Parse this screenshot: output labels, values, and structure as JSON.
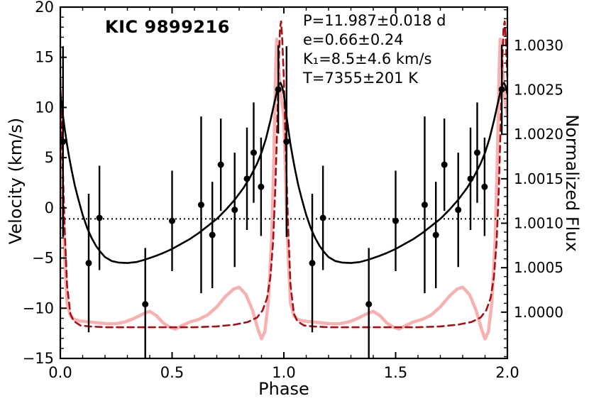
{
  "chart_data": {
    "type": "line",
    "title": "KIC 9899216",
    "xlabel": "Phase",
    "ylabel_left": "Velocity (km/s)",
    "ylabel_right": "Normalized Flux",
    "annotations": [
      "P=11.987±0.018 d",
      "e=0.66±0.24",
      "K₁=8.5±4.6 km/s",
      "T=7355±201 K"
    ],
    "x_range": [
      0,
      2
    ],
    "y_left_range": [
      -15,
      20
    ],
    "y_right_range": [
      0.99948,
      1.00343
    ],
    "x_ticks": [
      0,
      0.5,
      1,
      1.5,
      2
    ],
    "x_tick_labels": [
      "0.0",
      "0.5",
      "1.0",
      "1.5",
      "2.0"
    ],
    "x_minor_step": 0.1,
    "y_left_ticks": [
      -15,
      -10,
      -5,
      0,
      5,
      10,
      15,
      20
    ],
    "y_left_tick_labels": [
      "−15",
      "−10",
      "−5",
      "0",
      "5",
      "10",
      "15",
      "20"
    ],
    "y_left_minor_step": 1,
    "y_right_ticks": [
      1.0,
      1.0005,
      1.001,
      1.0015,
      1.002,
      1.0025,
      1.003
    ],
    "y_right_tick_labels": [
      "1.0000",
      "1.0005",
      "1.0010",
      "1.0015",
      "1.0020",
      "1.0025",
      "1.0030"
    ],
    "y_right_minor_step": 0.0001,
    "grid": false,
    "legend": "none",
    "cycles": 2,
    "systemic_velocity": -1.1,
    "colors": {
      "rv_model": "#000000",
      "flux_observed": "#f7b1b1",
      "flux_model": "#a50f15",
      "data_points": "#000000"
    },
    "series": [
      {
        "name": "flux-observed",
        "axis": "right",
        "style": "solid",
        "color": "#f7b1b1",
        "width": 4.5,
        "x": [
          0,
          0.01,
          0.02,
          0.03,
          0.045,
          0.06,
          0.09,
          0.13,
          0.17,
          0.21,
          0.25,
          0.29,
          0.33,
          0.37,
          0.4,
          0.43,
          0.46,
          0.49,
          0.515,
          0.545,
          0.58,
          0.62,
          0.66,
          0.7,
          0.74,
          0.775,
          0.8,
          0.83,
          0.86,
          0.885,
          0.9,
          0.915,
          0.93,
          0.945,
          0.955,
          0.963,
          0.968,
          0.975,
          0.983,
          0.991,
          1.0
        ],
        "y": [
          1.0022,
          1.0013,
          1.0006,
          1.0001,
          0.99996,
          0.99992,
          0.9999,
          0.99989,
          0.99988,
          0.99987,
          0.99987,
          0.99989,
          0.99993,
          0.99998,
          1.00001,
          0.99996,
          0.99988,
          0.99983,
          0.99981,
          0.99985,
          0.99989,
          0.99992,
          0.99997,
          1.00006,
          1.00018,
          1.00026,
          1.00028,
          1.0002,
          1.00002,
          0.9998,
          0.9997,
          0.99978,
          1.0001,
          1.0008,
          1.0017,
          1.0027,
          1.00307,
          1.00285,
          1.00255,
          1.00235,
          1.0022
        ]
      },
      {
        "name": "flux-model",
        "axis": "right",
        "style": "dashed",
        "color": "#a50f15",
        "width": 2.6,
        "x": [
          0,
          0.01,
          0.02,
          0.03,
          0.045,
          0.06,
          0.09,
          0.13,
          0.2,
          0.3,
          0.4,
          0.5,
          0.6,
          0.7,
          0.78,
          0.84,
          0.88,
          0.905,
          0.925,
          0.94,
          0.952,
          0.962,
          0.97,
          0.977,
          0.983,
          0.988,
          0.993,
          1.0
        ],
        "y": [
          1.00262,
          1.0017,
          1.0009,
          1.0003,
          0.99998,
          0.9999,
          0.99985,
          0.99984,
          0.99983,
          0.99983,
          0.99983,
          0.99983,
          0.99983,
          0.99984,
          0.99986,
          0.99989,
          0.99994,
          1.00002,
          1.00016,
          1.0004,
          1.0008,
          1.0014,
          1.0021,
          1.0028,
          1.0032,
          1.00327,
          1.00305,
          1.00262
        ]
      },
      {
        "name": "rv-model",
        "axis": "left",
        "style": "solid",
        "color": "#000000",
        "width": 2.6,
        "x": [
          0,
          0.005,
          0.01,
          0.02,
          0.03,
          0.04,
          0.05,
          0.065,
          0.08,
          0.1,
          0.12,
          0.14,
          0.16,
          0.18,
          0.2,
          0.23,
          0.26,
          0.3,
          0.34,
          0.38,
          0.42,
          0.46,
          0.5,
          0.54,
          0.58,
          0.62,
          0.66,
          0.7,
          0.74,
          0.78,
          0.82,
          0.85,
          0.88,
          0.9,
          0.92,
          0.94,
          0.955,
          0.968,
          0.978,
          0.985,
          0.992,
          1.0
        ],
        "y": [
          11.3,
          10.4,
          9.5,
          7.8,
          6.3,
          5.0,
          3.8,
          2.2,
          0.9,
          -0.7,
          -2.0,
          -3.0,
          -3.8,
          -4.4,
          -4.9,
          -5.3,
          -5.45,
          -5.5,
          -5.4,
          -5.15,
          -4.85,
          -4.5,
          -4.1,
          -3.6,
          -3.1,
          -2.5,
          -1.8,
          -1.1,
          -0.2,
          0.8,
          2.0,
          3.1,
          4.4,
          5.5,
          6.9,
          8.7,
          10.2,
          11.5,
          12.3,
          12.45,
          12.1,
          11.3
        ]
      }
    ],
    "rv_points": {
      "color": "#000000",
      "marker_radius": 4.5,
      "phase": [
        0.012,
        0.127,
        0.175,
        0.38,
        0.5,
        0.63,
        0.68,
        0.718,
        0.78,
        0.835,
        0.865,
        0.898,
        0.975
      ],
      "velocity": [
        6.6,
        -5.5,
        -1.0,
        -9.6,
        -1.3,
        0.3,
        -2.7,
        4.3,
        -0.2,
        2.9,
        5.5,
        2.1,
        11.8
      ],
      "error": [
        9.5,
        6.9,
        5.2,
        5.6,
        5.0,
        8.8,
        5.3,
        4.6,
        5.7,
        5.1,
        5.0,
        4.9,
        4.4
      ]
    }
  }
}
